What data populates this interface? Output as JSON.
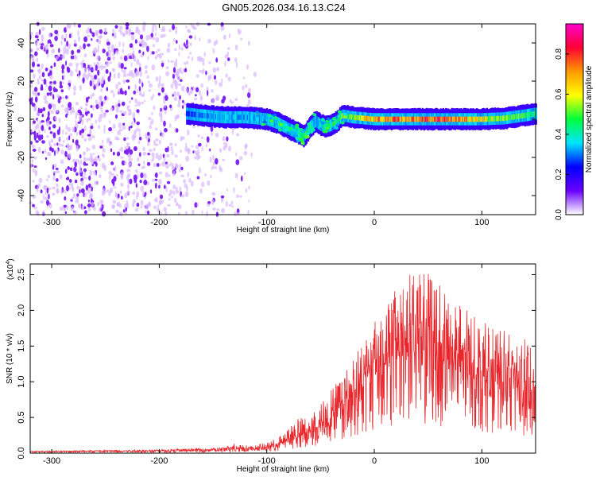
{
  "title": "GN05.2026.034.16.13.C24",
  "chart_data": [
    {
      "type": "heatmap",
      "name": "spectrogram",
      "xlabel": "Height of straight line (km)",
      "ylabel": "Frequency (Hz)",
      "xlim": [
        -320,
        150
      ],
      "ylim": [
        -50,
        50
      ],
      "xticks": [
        -300,
        -200,
        -100,
        0,
        100
      ],
      "yticks": [
        -40,
        -20,
        0,
        20,
        40
      ],
      "colorbar": {
        "label": "Normalized spectral amplitude",
        "range": [
          0,
          0.95
        ],
        "ticks": [
          0.0,
          0.2,
          0.4,
          0.6,
          0.8
        ],
        "colors": [
          "#ffffff",
          "#6a00ff",
          "#0000ff",
          "#00e5ff",
          "#00ff3c",
          "#ffff00",
          "#ff9900",
          "#ff0033",
          "#ff00cc"
        ]
      },
      "noise_region_x": [
        -320,
        -110
      ],
      "ridge": {
        "x": [
          -175,
          -160,
          -140,
          -120,
          -100,
          -90,
          -80,
          -72,
          -66,
          -60,
          -55,
          -50,
          -45,
          -40,
          -35,
          -30,
          -20,
          0,
          20,
          40,
          60,
          80,
          100,
          120,
          140,
          150
        ],
        "y": [
          3,
          2,
          1,
          1,
          0,
          -2,
          -5,
          -7,
          -9,
          -4,
          -1,
          -3,
          -4,
          -3,
          -1,
          2,
          1,
          0,
          0,
          0,
          0,
          0,
          0,
          0.5,
          2,
          3
        ],
        "amp": [
          0.3,
          0.35,
          0.4,
          0.38,
          0.4,
          0.42,
          0.45,
          0.5,
          0.55,
          0.45,
          0.4,
          0.45,
          0.5,
          0.5,
          0.55,
          0.6,
          0.65,
          0.8,
          0.85,
          0.8,
          0.9,
          0.8,
          0.7,
          0.6,
          0.55,
          0.5
        ]
      }
    },
    {
      "type": "line",
      "name": "snr",
      "xlabel": "Height of straight line (km)",
      "ylabel": "SNR (10 * v/v)",
      "yscale_label_prefix": "(x10",
      "yscale_label_exp": "4",
      "yscale_label_suffix": ")",
      "color": "#e8262b",
      "xlim": [
        -320,
        150
      ],
      "ylim": [
        0,
        2.65
      ],
      "xticks": [
        -300,
        -200,
        -100,
        0,
        100
      ],
      "yticks": [
        0.0,
        0.5,
        1.0,
        1.5,
        2.0,
        2.5
      ],
      "envelope": {
        "x": [
          -320,
          -200,
          -140,
          -130,
          -115,
          -100,
          -90,
          -80,
          -70,
          -60,
          -50,
          -40,
          -30,
          -20,
          -10,
          0,
          10,
          20,
          30,
          40,
          50,
          60,
          70,
          80,
          90,
          100,
          110,
          120,
          130,
          140,
          150
        ],
        "upper": [
          0.03,
          0.05,
          0.08,
          0.14,
          0.1,
          0.15,
          0.22,
          0.35,
          0.5,
          0.55,
          0.7,
          0.9,
          1.1,
          1.35,
          1.6,
          1.9,
          2.05,
          2.3,
          2.6,
          2.5,
          2.55,
          2.4,
          2.2,
          2.1,
          1.95,
          1.85,
          1.8,
          1.75,
          1.65,
          1.6,
          1.5
        ],
        "mean": [
          0.02,
          0.03,
          0.04,
          0.06,
          0.05,
          0.07,
          0.1,
          0.16,
          0.22,
          0.25,
          0.33,
          0.45,
          0.6,
          0.75,
          0.9,
          1.05,
          1.15,
          1.25,
          1.35,
          1.35,
          1.3,
          1.25,
          1.2,
          1.15,
          1.05,
          1.0,
          0.95,
          0.9,
          0.85,
          0.8,
          0.75
        ]
      }
    }
  ]
}
